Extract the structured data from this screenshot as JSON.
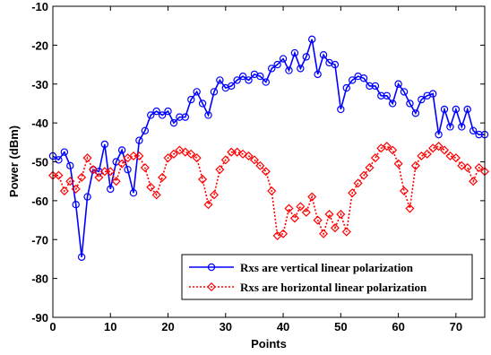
{
  "chart_data": {
    "type": "line",
    "xlabel": "Points",
    "ylabel": "Power (dBm)",
    "xlim": [
      0,
      75
    ],
    "ylim": [
      -90,
      -10
    ],
    "x_ticks": [
      0,
      10,
      20,
      30,
      40,
      50,
      60,
      70
    ],
    "y_ticks": [
      -90,
      -80,
      -70,
      -60,
      -50,
      -40,
      -30,
      -20,
      -10
    ],
    "grid": false,
    "legend_position": "bottom-right",
    "x": [
      0,
      1,
      2,
      3,
      4,
      5,
      6,
      7,
      8,
      9,
      10,
      11,
      12,
      13,
      14,
      15,
      16,
      17,
      18,
      19,
      20,
      21,
      22,
      23,
      24,
      25,
      26,
      27,
      28,
      29,
      30,
      31,
      32,
      33,
      34,
      35,
      36,
      37,
      38,
      39,
      40,
      41,
      42,
      43,
      44,
      45,
      46,
      47,
      48,
      49,
      50,
      51,
      52,
      53,
      54,
      55,
      56,
      57,
      58,
      59,
      60,
      61,
      62,
      63,
      64,
      65,
      66,
      67,
      68,
      69,
      70,
      71,
      72,
      73,
      74,
      75
    ],
    "series": [
      {
        "name": "Rxs are vertical linear polarization",
        "color": "#0000ff",
        "line_style": "solid",
        "marker": "circle",
        "values": [
          -48.5,
          -49.5,
          -47.5,
          -51,
          -61,
          -74.5,
          -59,
          -52,
          -52.5,
          -45.5,
          -57,
          -50,
          -47,
          -52,
          -58,
          -44.5,
          -42,
          -38,
          -37,
          -38,
          -37,
          -40,
          -38.5,
          -38.5,
          -34,
          -32,
          -35,
          -38,
          -32,
          -29,
          -31,
          -30.5,
          -29,
          -28,
          -29,
          -27.5,
          -28,
          -29.5,
          -26,
          -25,
          -23.5,
          -26.5,
          -22,
          -26,
          -23,
          -18.5,
          -27.5,
          -22.5,
          -24.5,
          -25,
          -36.5,
          -31,
          -29,
          -28,
          -28.5,
          -30.5,
          -30.5,
          -33,
          -33,
          -35,
          -30,
          -32,
          -35,
          -37.5,
          -34,
          -33,
          -32.5,
          -43,
          -36.5,
          -41,
          -36.5,
          -41,
          -36.5,
          -42,
          -43,
          -43
        ]
      },
      {
        "name": "Rxs are horizontal linear polarization",
        "color": "#ff0000",
        "line_style": "dotted",
        "marker": "diamond",
        "values": [
          -53.5,
          -53.5,
          -57.5,
          -55,
          -57,
          -54,
          -49,
          -52,
          -54,
          -52.5,
          -52.5,
          -55,
          -50.5,
          -49,
          -48.5,
          -48.5,
          -51.5,
          -56.5,
          -58.5,
          -54,
          -49,
          -48,
          -47,
          -47.5,
          -48,
          -49,
          -54.5,
          -61,
          -58.5,
          -52,
          -49.5,
          -47.5,
          -47.5,
          -48,
          -48.5,
          -49.5,
          -51,
          -52.5,
          -57.5,
          -69,
          -68.5,
          -62,
          -64.5,
          -61.5,
          -63,
          -59,
          -65,
          -68.5,
          -63.5,
          -67,
          -63.5,
          -68,
          -58,
          -55.5,
          -53.5,
          -51.5,
          -49,
          -46.5,
          -46,
          -47,
          -50.5,
          -57.5,
          -62,
          -51,
          -48.5,
          -48,
          -46.5,
          -46,
          -47,
          -48.5,
          -49,
          -51,
          -51.5,
          -55,
          -51.5,
          -52.5
        ]
      }
    ]
  }
}
